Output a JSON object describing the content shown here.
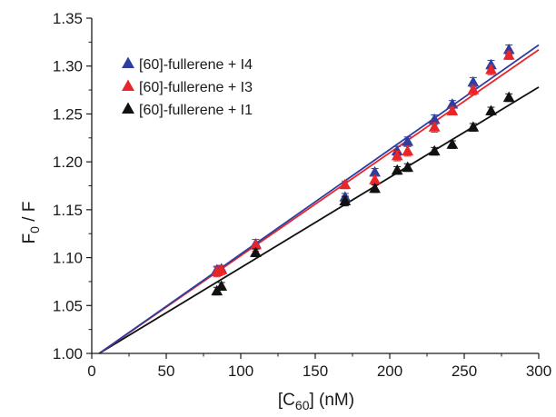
{
  "chart_data": {
    "type": "scatter",
    "title": "",
    "xlabel": {
      "prefix": "[C",
      "sub": "60",
      "suffix": "] (nM)"
    },
    "ylabel": {
      "prefix": "F",
      "sub": "0",
      "suffix": " / F"
    },
    "xlim": [
      0,
      300
    ],
    "ylim": [
      1.0,
      1.35
    ],
    "xticks": [
      "0",
      "50",
      "100",
      "150",
      "200",
      "250",
      "300"
    ],
    "yticks": [
      "1.00",
      "1.05",
      "1.10",
      "1.15",
      "1.20",
      "1.25",
      "1.30",
      "1.35"
    ],
    "grid": false,
    "legend_position": "top-left",
    "series": [
      {
        "name": "[60]-fullerene + I4",
        "color": "#2e3d9e",
        "marker": "triangle",
        "x": [
          84,
          87,
          110,
          170,
          190,
          205,
          212,
          230,
          242,
          256,
          268,
          280
        ],
        "y": [
          1.087,
          1.088,
          1.114,
          1.163,
          1.189,
          1.211,
          1.221,
          1.244,
          1.26,
          1.283,
          1.301,
          1.317
        ],
        "err": [
          0.004,
          0.004,
          0.005,
          0.004,
          0.004,
          0.005,
          0.005,
          0.005,
          0.004,
          0.005,
          0.005,
          0.005
        ],
        "fit": {
          "x": [
            5,
            300
          ],
          "y": [
            1.0,
            1.322
          ]
        }
      },
      {
        "name": "[60]-fullerene + I3",
        "color": "#e8262a",
        "marker": "triangle",
        "x": [
          84,
          87,
          110,
          170,
          190,
          205,
          212,
          230,
          242,
          256,
          268,
          280
        ],
        "y": [
          1.085,
          1.087,
          1.113,
          1.176,
          1.181,
          1.206,
          1.211,
          1.236,
          1.253,
          1.275,
          1.296,
          1.311
        ],
        "err": [
          0.005,
          0.005,
          0.006,
          0.004,
          0.004,
          0.005,
          0.005,
          0.005,
          0.004,
          0.005,
          0.005,
          0.004
        ],
        "fit": {
          "x": [
            5,
            300
          ],
          "y": [
            1.0,
            1.317
          ]
        }
      },
      {
        "name": "[60]-fullerene + I1",
        "color": "#111111",
        "marker": "triangle",
        "x": [
          84,
          87,
          110,
          170,
          190,
          205,
          212,
          230,
          242,
          256,
          268,
          280
        ],
        "y": [
          1.065,
          1.07,
          1.105,
          1.159,
          1.172,
          1.191,
          1.194,
          1.211,
          1.218,
          1.236,
          1.253,
          1.267
        ],
        "err": [
          0.004,
          0.004,
          0.004,
          0.005,
          0.004,
          0.004,
          0.004,
          0.004,
          0.004,
          0.004,
          0.004,
          0.004
        ],
        "fit": {
          "x": [
            5,
            300
          ],
          "y": [
            1.0,
            1.278
          ]
        }
      }
    ]
  }
}
